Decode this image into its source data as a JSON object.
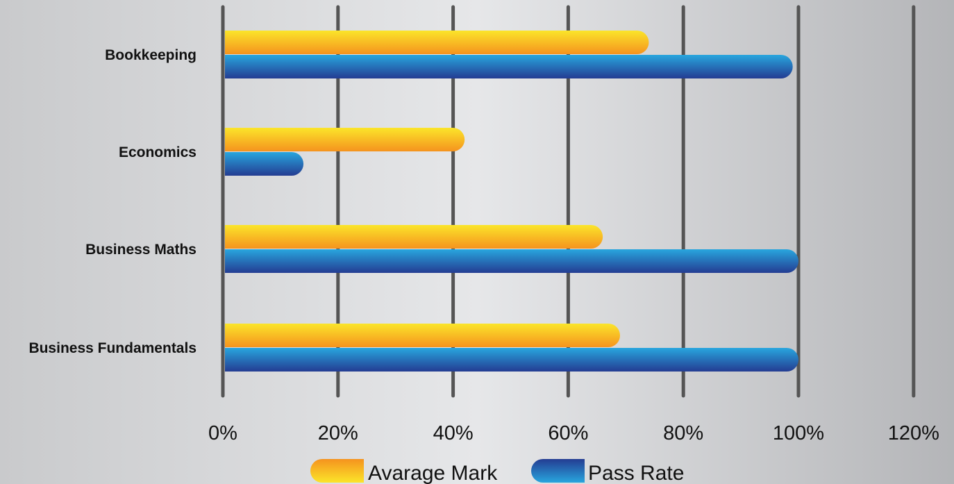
{
  "chart_data": {
    "type": "bar",
    "orientation": "horizontal",
    "categories": [
      "Bookkeeping",
      "Economics",
      "Business Maths",
      "Business Fundamentals"
    ],
    "series": [
      {
        "name": "Avarage Mark",
        "values": [
          74,
          42,
          66,
          69
        ],
        "color": "#f7a21b"
      },
      {
        "name": "Pass Rate",
        "values": [
          99,
          14,
          100,
          100
        ],
        "color": "#1f5fb0"
      }
    ],
    "xlim": [
      0,
      120
    ],
    "xticks": [
      0,
      20,
      40,
      60,
      80,
      100,
      120
    ],
    "xtick_labels": [
      "0%",
      "20%",
      "40%",
      "60%",
      "80%",
      "100%",
      "120%"
    ],
    "grid": "vertical",
    "legend": "bottom-center",
    "title": "",
    "xlabel": "",
    "ylabel": ""
  }
}
